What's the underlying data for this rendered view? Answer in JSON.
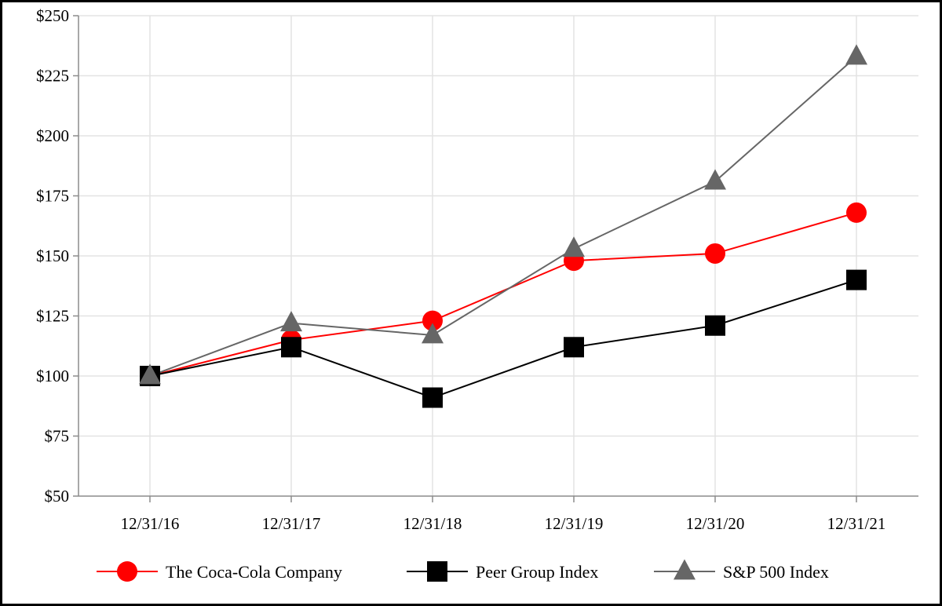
{
  "chart_data": {
    "type": "line",
    "title": "",
    "xlabel": "",
    "ylabel": "",
    "categories": [
      "12/31/16",
      "12/31/17",
      "12/31/18",
      "12/31/19",
      "12/31/20",
      "12/31/21"
    ],
    "ylim": [
      50,
      250
    ],
    "yticks": [
      50,
      75,
      100,
      125,
      150,
      175,
      200,
      225,
      250
    ],
    "ytick_labels": [
      "$50",
      "$75",
      "$100",
      "$125",
      "$150",
      "$175",
      "$200",
      "$225",
      "$250"
    ],
    "grid": true,
    "legend_position": "bottom",
    "series": [
      {
        "name": "The Coca-Cola Company",
        "values": [
          100,
          115,
          123,
          148,
          151,
          168
        ],
        "color": "#ff0000",
        "marker": "circle"
      },
      {
        "name": "Peer Group Index",
        "values": [
          100,
          112,
          91,
          112,
          121,
          140
        ],
        "color": "#000000",
        "marker": "square"
      },
      {
        "name": "S&P 500 Index",
        "values": [
          100,
          122,
          117,
          153,
          181,
          233
        ],
        "color": "#666666",
        "marker": "triangle"
      }
    ]
  }
}
